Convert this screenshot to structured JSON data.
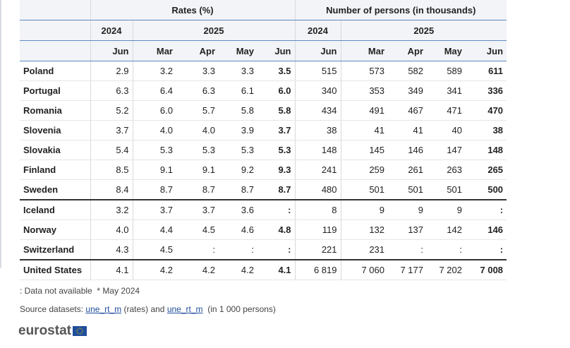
{
  "header": {
    "groups": [
      "Rates (%)",
      "Number of persons (in thousands)"
    ],
    "years": [
      "2024",
      "2025",
      "2024",
      "2025"
    ],
    "months": [
      "Jun",
      "Mar",
      "Apr",
      "May",
      "Jun",
      "Jun",
      "Mar",
      "Apr",
      "May",
      "Jun"
    ]
  },
  "table": {
    "rows": [
      {
        "label": "Poland",
        "cells": [
          "2.9",
          "3.2",
          "3.3",
          "3.3",
          "3.5",
          "515",
          "573",
          "582",
          "589",
          "611"
        ]
      },
      {
        "label": "Portugal",
        "cells": [
          "6.3",
          "6.4",
          "6.3",
          "6.1",
          "6.0",
          "340",
          "353",
          "349",
          "341",
          "336"
        ]
      },
      {
        "label": "Romania",
        "cells": [
          "5.2",
          "6.0",
          "5.7",
          "5.8",
          "5.8",
          "434",
          "491",
          "467",
          "471",
          "470"
        ]
      },
      {
        "label": "Slovenia",
        "cells": [
          "3.7",
          "4.0",
          "4.0",
          "3.9",
          "3.7",
          "38",
          "41",
          "41",
          "40",
          "38"
        ]
      },
      {
        "label": "Slovakia",
        "cells": [
          "5.4",
          "5.3",
          "5.3",
          "5.3",
          "5.3",
          "148",
          "145",
          "146",
          "147",
          "148"
        ]
      },
      {
        "label": "Finland",
        "cells": [
          "8.5",
          "9.1",
          "9.1",
          "9.2",
          "9.3",
          "241",
          "259",
          "261",
          "263",
          "265"
        ]
      },
      {
        "label": "Sweden",
        "cells": [
          "8.4",
          "8.7",
          "8.7",
          "8.7",
          "8.7",
          "480",
          "501",
          "501",
          "501",
          "500"
        ]
      },
      {
        "label": "Iceland",
        "cells": [
          "3.2",
          "3.7",
          "3.7",
          "3.6",
          ":",
          "8",
          "9",
          "9",
          "9",
          ":"
        ]
      },
      {
        "label": "Norway",
        "cells": [
          "4.0",
          "4.4",
          "4.5",
          "4.6",
          "4.8",
          "119",
          "132",
          "137",
          "142",
          "146"
        ]
      },
      {
        "label": "Switzerland",
        "cells": [
          "4.3",
          "4.5",
          ":",
          ":",
          ":",
          "221",
          "231",
          ":",
          ":",
          ":"
        ]
      },
      {
        "label": "United States",
        "cells": [
          "4.1",
          "4.2",
          "4.2",
          "4.2",
          "4.1",
          "6 819",
          "7 060",
          "7 177",
          "7 202",
          "7 008"
        ]
      }
    ]
  },
  "footer": {
    "not_available": ": Data not available",
    "may": "* May 2024",
    "source_prefix": "Source datasets:",
    "link_rates": "une_rt_m",
    "mid": "(rates) and",
    "link_persons": "une_rt_m",
    "suffix": "(in 1 000 persons)",
    "logo": "eurostat"
  }
}
